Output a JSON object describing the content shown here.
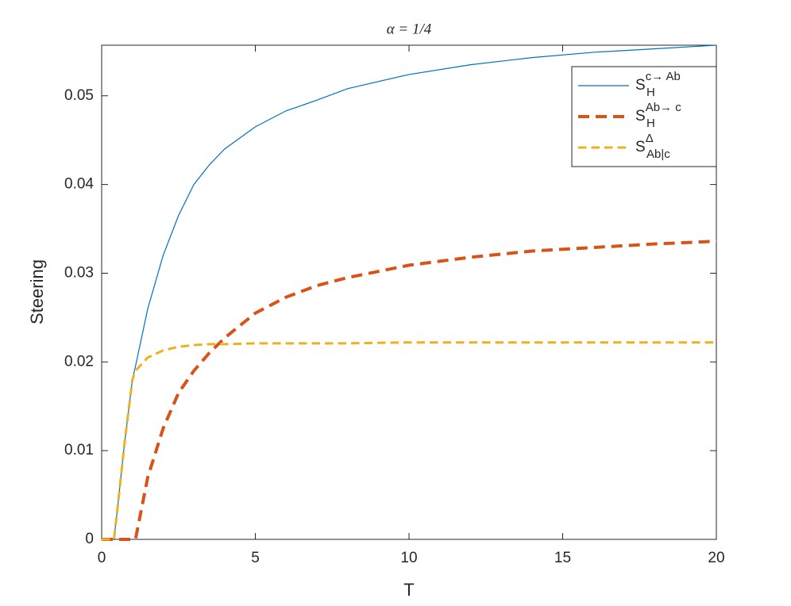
{
  "chart_data": {
    "type": "line",
    "title": "α = 1/4",
    "x_label": "T",
    "y_label": "Steering",
    "x": [
      0,
      0.4,
      0.5,
      0.75,
      1,
      1.1,
      1.5,
      2,
      2.5,
      3,
      3.5,
      4,
      5,
      6,
      7,
      8,
      10,
      12,
      14,
      16,
      18,
      20
    ],
    "series": [
      {
        "name": "S",
        "name_sub": "H",
        "name_sup": "c→ Ab",
        "color": "#0072bd",
        "line_style": "solid",
        "line_width": 1.2,
        "values": [
          0,
          0,
          0.003,
          0.011,
          0.018,
          0.0195,
          0.026,
          0.032,
          0.0365,
          0.04,
          0.0422,
          0.044,
          0.0465,
          0.0483,
          0.0495,
          0.0508,
          0.0524,
          0.0535,
          0.0543,
          0.0549,
          0.0553,
          0.0557
        ]
      },
      {
        "name": "S",
        "name_sub": "H",
        "name_sup": "Ab→ c",
        "color": "#d95319",
        "line_style": "dashed",
        "line_width": 4,
        "values": [
          0,
          0,
          0,
          0,
          0,
          0,
          0.007,
          0.0125,
          0.0165,
          0.019,
          0.021,
          0.0227,
          0.0255,
          0.0273,
          0.0286,
          0.0295,
          0.0309,
          0.0318,
          0.0325,
          0.0329,
          0.0333,
          0.0336
        ]
      },
      {
        "name": "S",
        "name_sub": "Ab|c",
        "name_sup": "Δ",
        "color": "#edb120",
        "line_style": "dashed",
        "line_width": 3,
        "values": [
          0,
          0,
          0.003,
          0.011,
          0.018,
          0.019,
          0.0205,
          0.0213,
          0.0217,
          0.0219,
          0.022,
          0.022,
          0.0221,
          0.0221,
          0.0221,
          0.0221,
          0.0222,
          0.0222,
          0.0222,
          0.0222,
          0.0222,
          0.0222
        ]
      }
    ],
    "xlim": [
      0,
      20
    ],
    "ylim": [
      0,
      0.0557
    ],
    "xticks": [
      0,
      5,
      10,
      15,
      20
    ],
    "yticks": [
      0,
      0.01,
      0.02,
      0.03,
      0.04,
      0.05
    ],
    "grid": false,
    "legend": "northeast"
  }
}
